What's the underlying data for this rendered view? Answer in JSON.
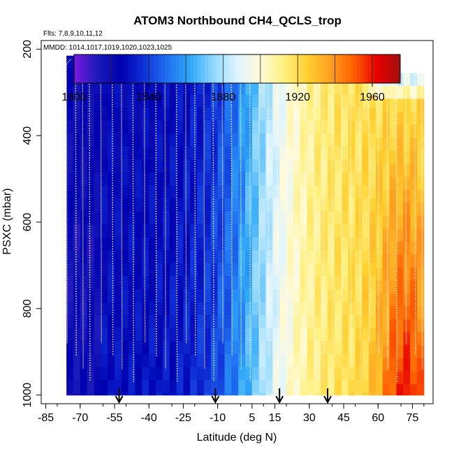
{
  "chart_data": {
    "type": "heatmap",
    "title": "ATOM3 Northbound CH4_QCLS_trop",
    "flights_label": "Flts: 7,8,9,10,11,12",
    "dates_label": "MMDD: 1014,1017,1019,1020,1023,1025",
    "xlabel": "Latitude (deg N)",
    "ylabel": "PSXC (mbar)",
    "xlim": [
      -87,
      84
    ],
    "ylim": [
      1020,
      180
    ],
    "x_ticks": [
      "-85",
      "-70",
      "-55",
      "-40",
      "-25",
      "-10",
      "5",
      "15",
      "30",
      "45",
      "60",
      "75"
    ],
    "x_tick_values": [
      -85,
      -70,
      -55,
      -40,
      -25,
      -10,
      5,
      15,
      30,
      45,
      60,
      75
    ],
    "y_ticks": [
      "200",
      "400",
      "600",
      "800",
      "1000"
    ],
    "y_tick_values": [
      200,
      400,
      600,
      800,
      1000
    ],
    "colorbar": {
      "min": 1800,
      "max": 1975,
      "ticks": [
        "1800",
        "1840",
        "1880",
        "1920",
        "1960"
      ],
      "tick_values": [
        1800,
        1840,
        1880,
        1920,
        1960
      ],
      "colors": [
        "#7a1ae0",
        "#1a1ab8",
        "#0000b0",
        "#1030d8",
        "#2070f0",
        "#30a8f8",
        "#90d8ff",
        "#dff4ff",
        "#fffad8",
        "#fff080",
        "#ffd030",
        "#ffa020",
        "#ff6000",
        "#e80000",
        "#a01010"
      ]
    },
    "profile_latitudes": [
      -76,
      -72,
      -69,
      -66,
      -61,
      -56,
      -52,
      -47,
      -42,
      -37,
      -33,
      -28,
      -24,
      -20,
      -16,
      -12,
      -8,
      -4,
      0,
      4,
      8,
      12,
      16,
      20,
      24,
      28,
      32,
      36,
      40,
      44,
      48,
      52,
      56,
      60,
      64,
      68,
      72,
      76,
      79
    ],
    "takeoff_markers_lat": [
      -53,
      -11,
      17,
      38
    ],
    "surface_ch4": 1846,
    "data_top_mbar": 215,
    "northern_top_mbar": 255
  }
}
